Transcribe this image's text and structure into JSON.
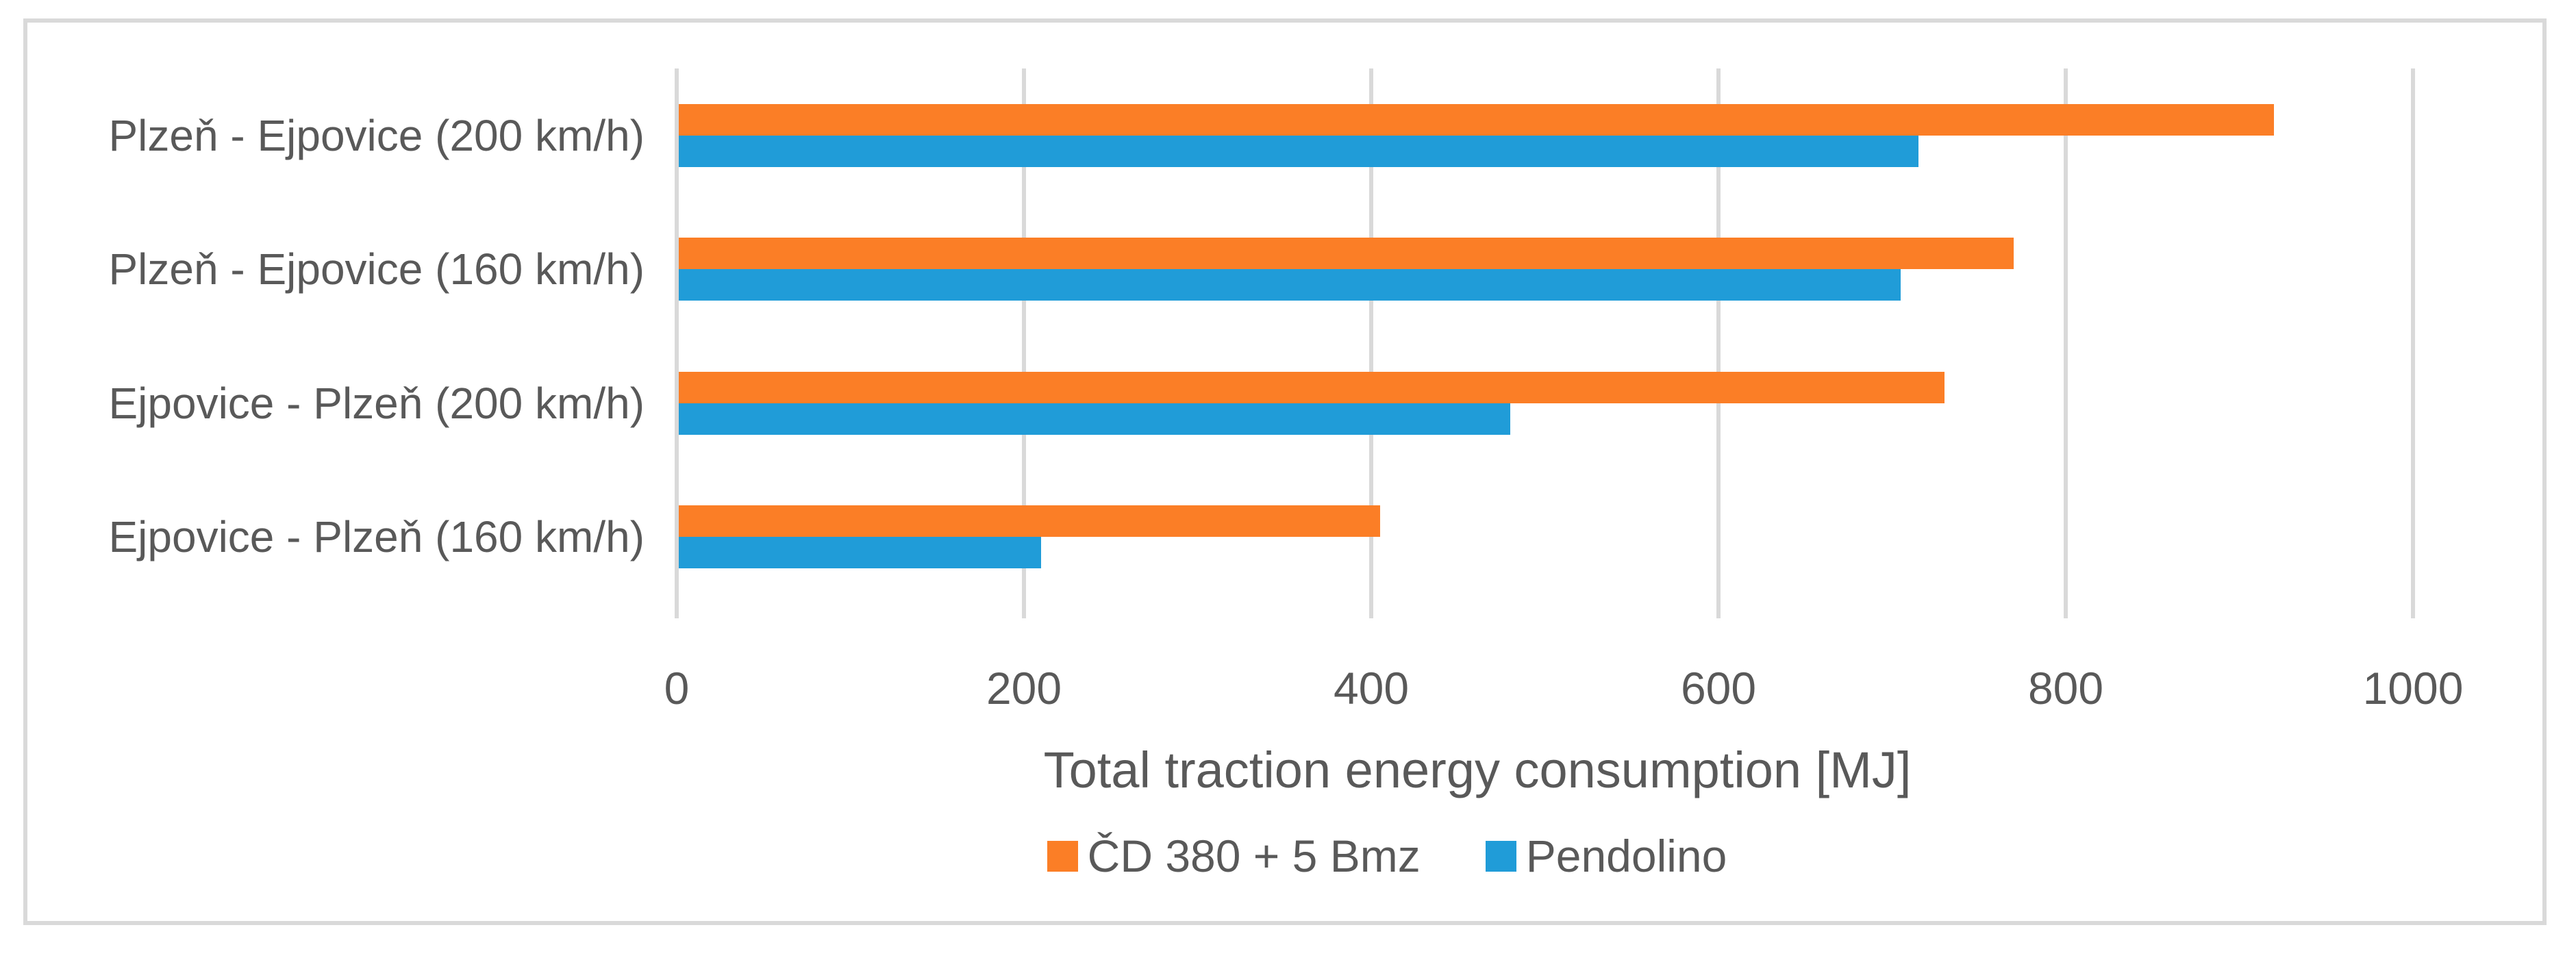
{
  "chart_data": {
    "type": "bar",
    "orientation": "horizontal",
    "xlabel": "Total traction energy consumption [MJ]",
    "categories": [
      "Plzeň - Ejpovice (200 km/h)",
      "Plzeň - Ejpovice (160 km/h)",
      "Ejpovice - Plzeň (200 km/h)",
      "Ejpovice - Plzeň (160 km/h)"
    ],
    "series": [
      {
        "name": "ČD 380 + 5 Bmz",
        "color": "#FB7E26",
        "values": [
          920,
          770,
          730,
          405
        ]
      },
      {
        "name": "Pendolino",
        "color": "#209CD8",
        "values": [
          715,
          705,
          480,
          210
        ]
      }
    ],
    "xlim": [
      0,
      1000
    ],
    "xticks": [
      0,
      200,
      400,
      600,
      800,
      1000
    ],
    "grid": true,
    "legend_position": "bottom"
  },
  "colors": {
    "text": "#595959",
    "gridline": "#D9D9D9",
    "frame_border": "#D9D9D9",
    "background": "#FFFFFF"
  }
}
